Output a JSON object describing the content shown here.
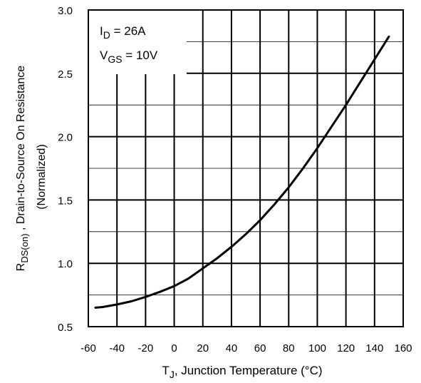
{
  "chart_data": {
    "type": "line",
    "title": "",
    "xlabel": {
      "main": "T",
      "sub": "J",
      "rest": ", Junction Temperature (°C)"
    },
    "ylabel": {
      "main": "R",
      "sub": "DS(on)",
      "rest": " ,  Drain-to-Source On Resistance",
      "line2": "(Normalized)"
    },
    "xlim": [
      -60,
      160
    ],
    "ylim": [
      0.5,
      3.0
    ],
    "x_ticks": [
      "-60",
      "-40",
      "-20",
      "0",
      "20",
      "40",
      "60",
      "80",
      "100",
      "120",
      "140",
      "160"
    ],
    "y_ticks": [
      "0.5",
      "1.0",
      "1.5",
      "2.0",
      "2.5",
      "3.0"
    ],
    "grid": true,
    "annotations": [
      {
        "main": "I",
        "sub": "D",
        "rest": " = 26A"
      },
      {
        "main": "V",
        "sub": "GS",
        "rest": " = 10V"
      }
    ],
    "series": [
      {
        "x": [
          -55,
          -50,
          -40,
          -30,
          -20,
          -10,
          0,
          10,
          20,
          30,
          40,
          50,
          60,
          70,
          80,
          90,
          100,
          110,
          120,
          130,
          140,
          150
        ],
        "y": [
          0.65,
          0.655,
          0.675,
          0.7,
          0.735,
          0.775,
          0.82,
          0.88,
          0.96,
          1.04,
          1.13,
          1.23,
          1.34,
          1.465,
          1.6,
          1.75,
          1.91,
          2.08,
          2.25,
          2.43,
          2.61,
          2.79
        ]
      }
    ]
  }
}
